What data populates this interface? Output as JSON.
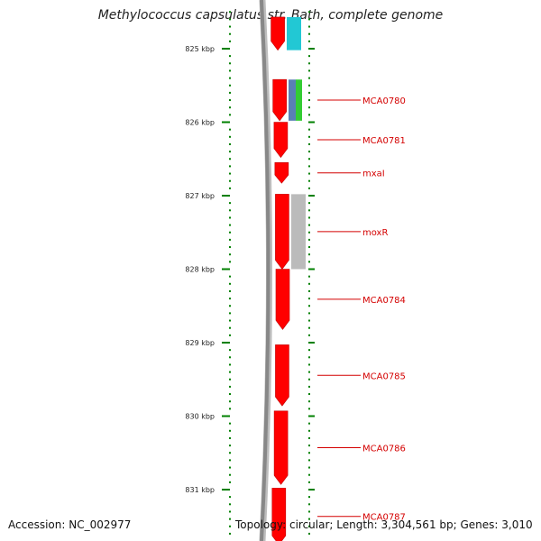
{
  "title": "Methylococcus capsulatus str. Bath, complete genome",
  "footer": {
    "accession": "Accession: NC_002977",
    "stats": "Topology: circular; Length: 3,304,561 bp; Genes: 3,010"
  },
  "colors": {
    "backbone": "#888888",
    "cds": "#ff0000",
    "cds_dark": "#c00000",
    "tick": "#008000",
    "label": "#d40000",
    "track_cyan": "#22c8d4",
    "track_blue": "#5a7fb5",
    "track_green": "#33cc33",
    "track_gray": "#bbbbbb"
  },
  "scale": {
    "unit": "kbp",
    "major_ticks": [
      {
        "value": 825,
        "label": "825 kbp"
      },
      {
        "value": 826,
        "label": "826 kbp"
      },
      {
        "value": 827,
        "label": "827 kbp"
      },
      {
        "value": 828,
        "label": "828 kbp"
      },
      {
        "value": 829,
        "label": "829 kbp"
      },
      {
        "value": 830,
        "label": "830 kbp"
      },
      {
        "value": 831,
        "label": "831 kbp"
      }
    ]
  },
  "genes": [
    {
      "name": "",
      "start": 824.57,
      "end": 825.02,
      "strand": "reverse"
    },
    {
      "name": "MCA0780",
      "start": 825.42,
      "end": 825.98,
      "strand": "reverse"
    },
    {
      "name": "MCA0781",
      "start": 826.0,
      "end": 826.48,
      "strand": "reverse"
    },
    {
      "name": "mxaI",
      "start": 826.55,
      "end": 826.83,
      "strand": "reverse"
    },
    {
      "name": "moxR",
      "start": 826.98,
      "end": 828.0,
      "strand": "reverse"
    },
    {
      "name": "MCA0784",
      "start": 828.0,
      "end": 828.82,
      "strand": "reverse"
    },
    {
      "name": "MCA0785",
      "start": 829.03,
      "end": 829.86,
      "strand": "reverse"
    },
    {
      "name": "MCA0786",
      "start": 829.93,
      "end": 830.93,
      "strand": "reverse"
    },
    {
      "name": "MCA0787",
      "start": 830.98,
      "end": 831.75,
      "strand": "reverse"
    }
  ],
  "feature_tracks": [
    {
      "color_key": "track_cyan",
      "start": 824.57,
      "end": 825.02
    },
    {
      "color_key": "track_blue",
      "start": 825.42,
      "end": 825.98
    },
    {
      "color_key": "track_green",
      "start": 825.42,
      "end": 825.98
    },
    {
      "color_key": "track_gray",
      "start": 826.98,
      "end": 828.0
    }
  ]
}
